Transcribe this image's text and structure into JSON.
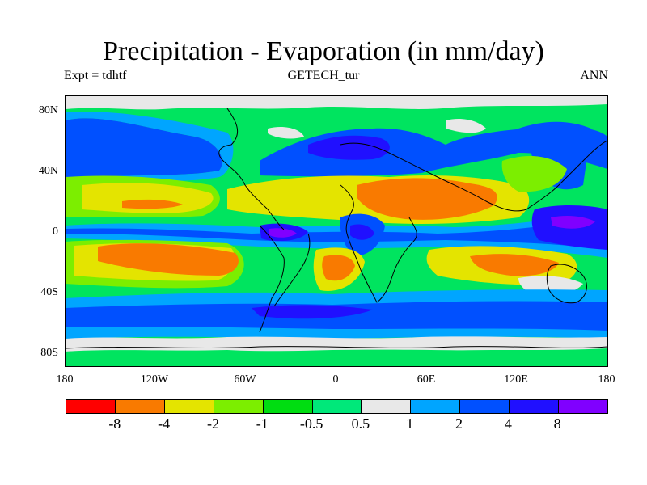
{
  "title": "Precipitation - Evaporation (in mm/day)",
  "subtitle_left": "Expt = tdhtf",
  "subtitle_center": "GETECH_tur",
  "subtitle_right": "ANN",
  "y_axis_labels": [
    "80N",
    "40N",
    "0",
    "40S",
    "80S"
  ],
  "x_axis_labels": [
    "180",
    "120W",
    "60W",
    "0",
    "60E",
    "120E",
    "180"
  ],
  "colorbar": {
    "colors": [
      "#ff0000",
      "#f97a00",
      "#e4e400",
      "#7cee00",
      "#00dd11",
      "#00e87a",
      "#e8e8e8",
      "#00a5ff",
      "#0050ff",
      "#2010ff",
      "#8000ff"
    ],
    "labels": [
      "-8",
      "-4",
      "-2",
      "-1",
      "-0.5",
      "0.5",
      "1",
      "2",
      "4",
      "8"
    ]
  },
  "map_colors": {
    "background": "#00e45f",
    "green": "#00dd11",
    "light_green": "#7cee00",
    "yellow": "#e4e400",
    "orange": "#f97a00",
    "white": "#e8e8e8",
    "light_blue": "#00a5ff",
    "blue": "#0050ff",
    "dark_blue": "#2010ff",
    "purple": "#8000ff"
  }
}
